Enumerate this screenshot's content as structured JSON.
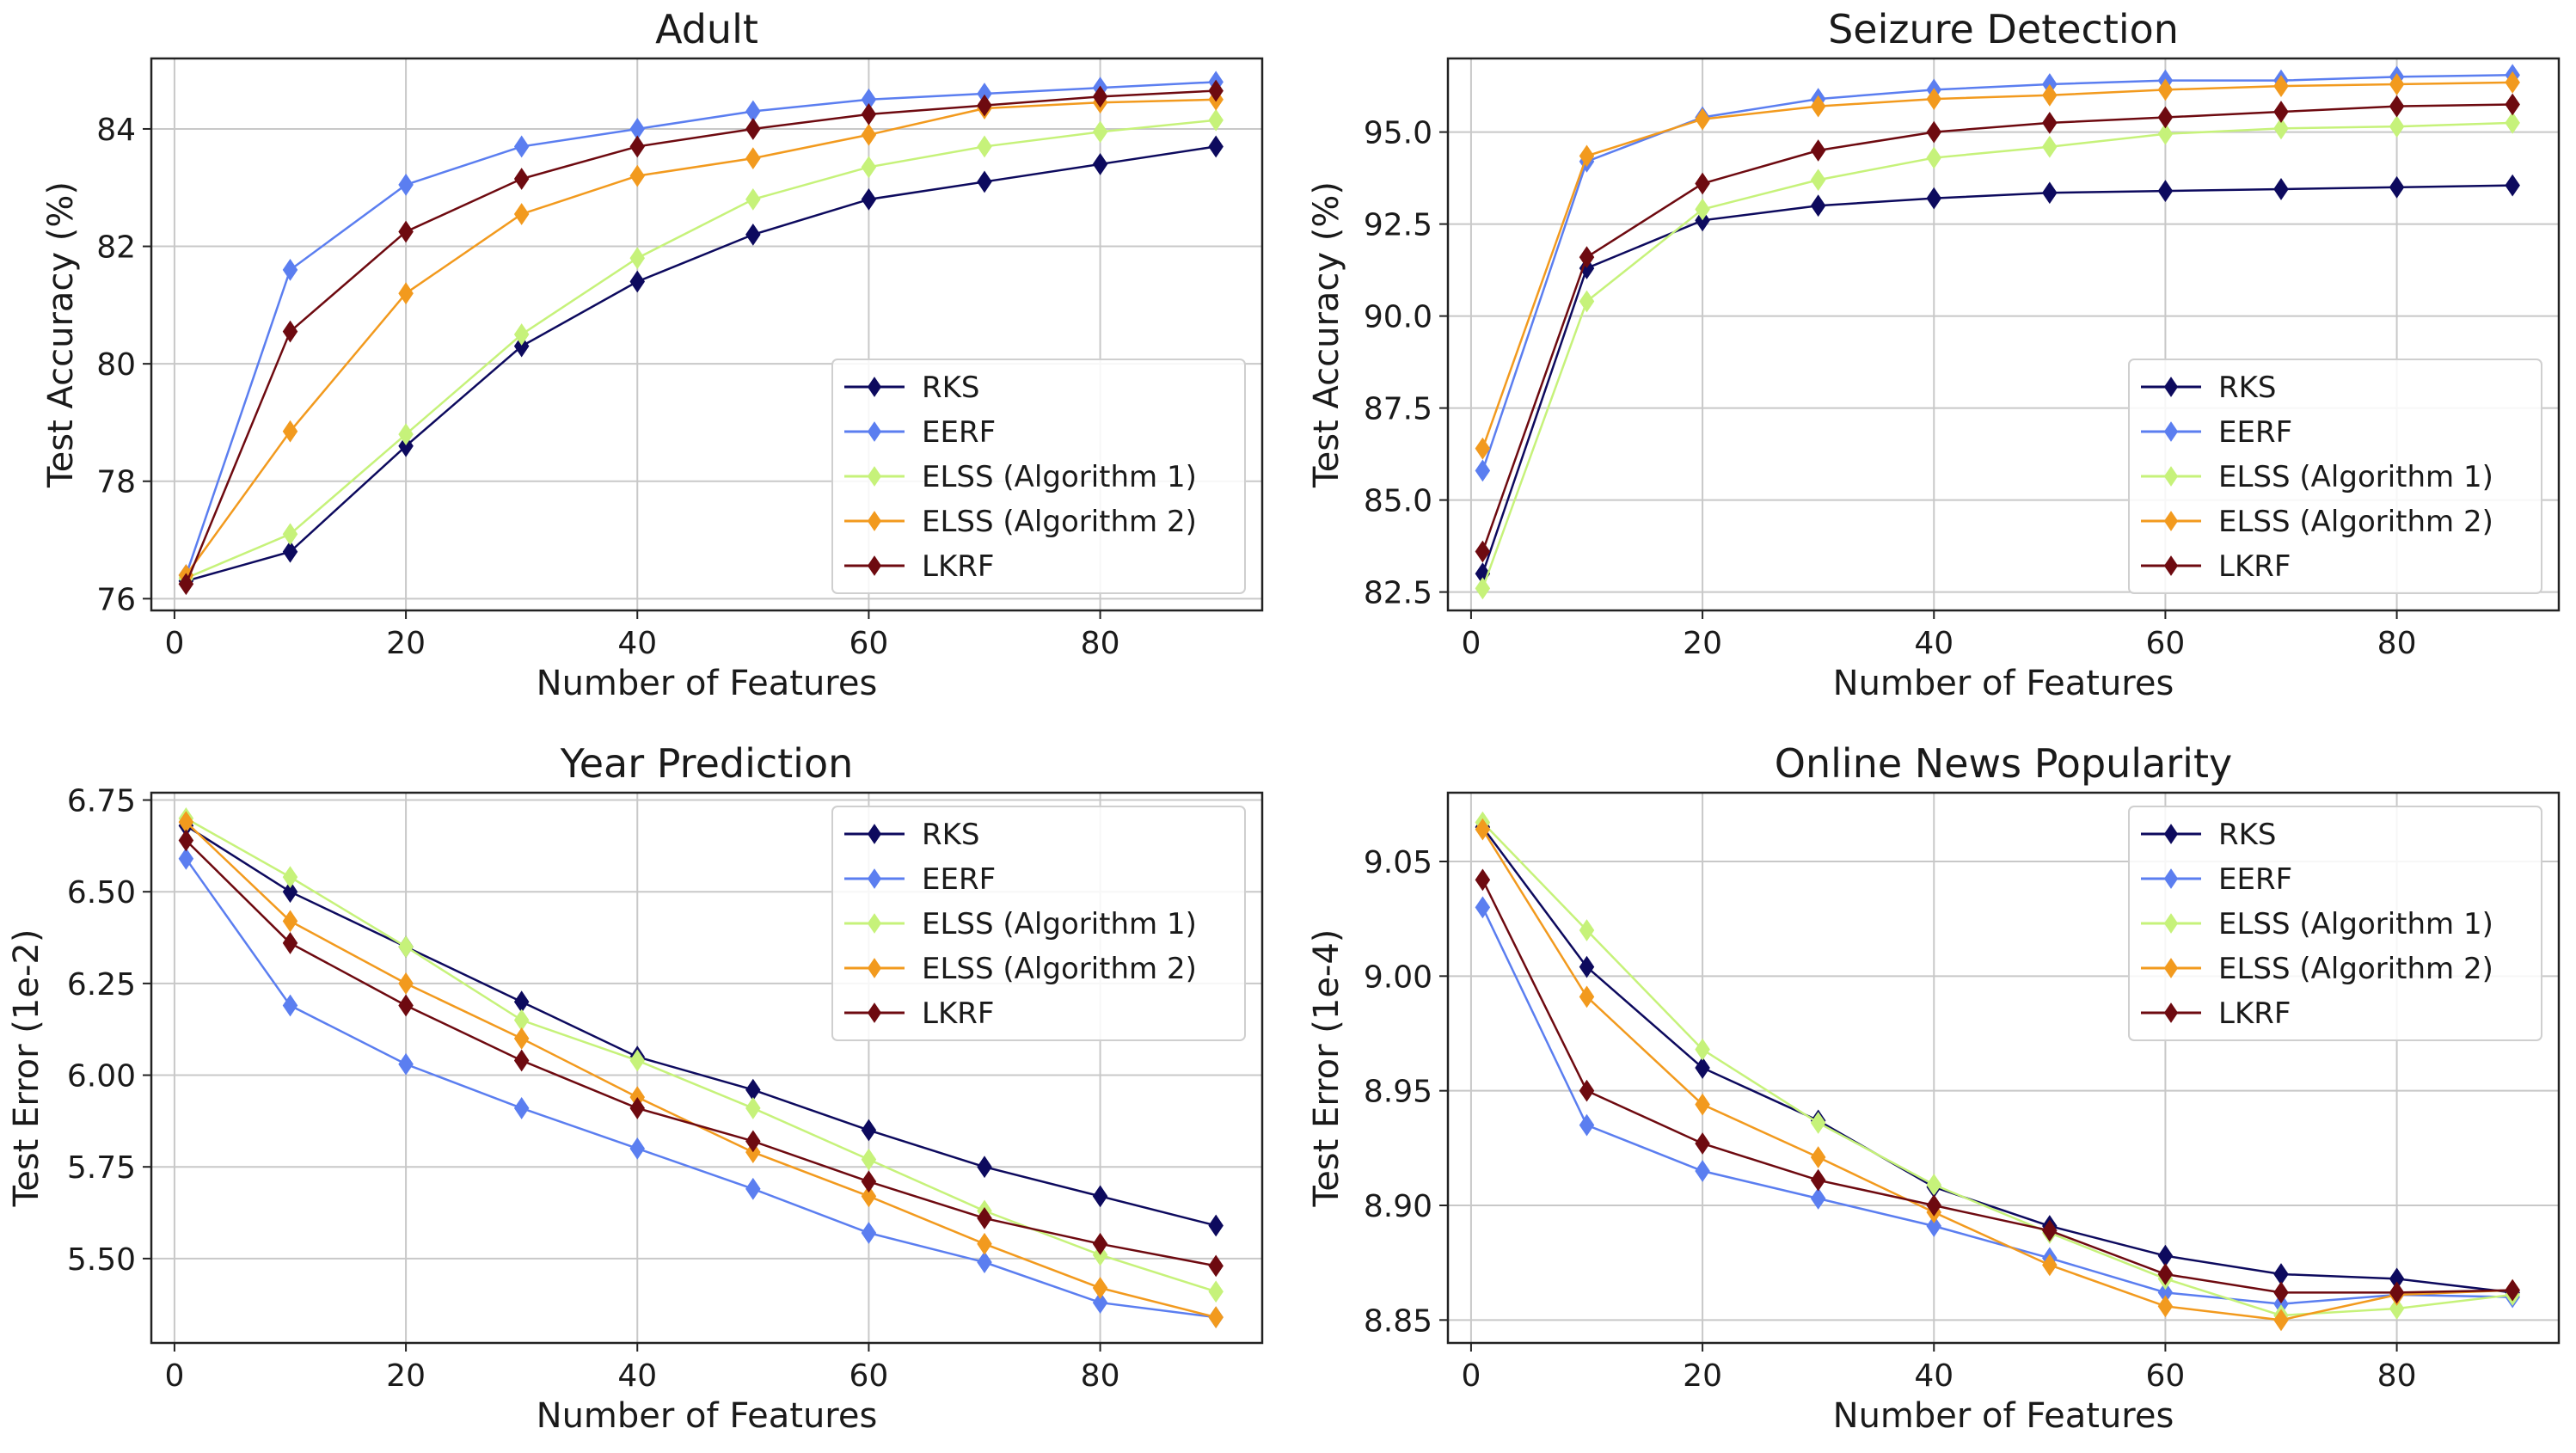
{
  "series_styles": [
    {
      "name": "RKS",
      "color": "#0d0a5e"
    },
    {
      "name": "EERF",
      "color": "#5b7ef0"
    },
    {
      "name": "ELSS (Algorithm 1)",
      "color": "#c6f27a"
    },
    {
      "name": "ELSS (Algorithm 2)",
      "color": "#f29a1e"
    },
    {
      "name": "LKRF",
      "color": "#6e0a10"
    }
  ],
  "chart_data": [
    {
      "type": "line",
      "title": "Adult",
      "xlabel": "Number of Features",
      "ylabel": "Test Accuracy (%)",
      "xlim": [
        -2,
        94
      ],
      "ylim": [
        75.8,
        85.2
      ],
      "xticks": [
        0,
        20,
        40,
        60,
        80
      ],
      "yticks": [
        76,
        78,
        80,
        82,
        84
      ],
      "ytick_labels": [
        "76",
        "78",
        "80",
        "82",
        "84"
      ],
      "grid": true,
      "legend_position": "lower right",
      "x": [
        1,
        10,
        20,
        30,
        40,
        50,
        60,
        70,
        80,
        90
      ],
      "series": [
        {
          "name": "RKS",
          "values": [
            76.3,
            76.8,
            78.6,
            80.3,
            81.4,
            82.2,
            82.8,
            83.1,
            83.4,
            83.7
          ]
        },
        {
          "name": "EERF",
          "values": [
            76.4,
            81.6,
            83.05,
            83.7,
            84.0,
            84.3,
            84.5,
            84.6,
            84.7,
            84.8
          ]
        },
        {
          "name": "ELSS (Algorithm 1)",
          "values": [
            76.35,
            77.1,
            78.8,
            80.5,
            81.8,
            82.8,
            83.35,
            83.7,
            83.95,
            84.15
          ]
        },
        {
          "name": "ELSS (Algorithm 2)",
          "values": [
            76.4,
            78.85,
            81.2,
            82.55,
            83.2,
            83.5,
            83.9,
            84.35,
            84.45,
            84.5
          ]
        },
        {
          "name": "LKRF",
          "values": [
            76.25,
            80.55,
            82.25,
            83.15,
            83.7,
            84.0,
            84.25,
            84.4,
            84.55,
            84.65
          ]
        }
      ]
    },
    {
      "type": "line",
      "title": "Seizure Detection",
      "xlabel": "Number of Features",
      "ylabel": "Test Accuracy (%)",
      "xlim": [
        -2,
        94
      ],
      "ylim": [
        82.0,
        97.0
      ],
      "xticks": [
        0,
        20,
        40,
        60,
        80
      ],
      "yticks": [
        82.5,
        85.0,
        87.5,
        90.0,
        92.5,
        95.0
      ],
      "ytick_labels": [
        "82.5",
        "85.0",
        "87.5",
        "90.0",
        "92.5",
        "95.0"
      ],
      "grid": true,
      "legend_position": "lower right",
      "x": [
        1,
        10,
        20,
        30,
        40,
        50,
        60,
        70,
        80,
        90
      ],
      "series": [
        {
          "name": "RKS",
          "values": [
            83.0,
            91.3,
            92.6,
            93.0,
            93.2,
            93.35,
            93.4,
            93.45,
            93.5,
            93.55
          ]
        },
        {
          "name": "EERF",
          "values": [
            85.8,
            94.2,
            95.4,
            95.9,
            96.15,
            96.3,
            96.4,
            96.4,
            96.5,
            96.55
          ]
        },
        {
          "name": "ELSS (Algorithm 1)",
          "values": [
            82.6,
            90.4,
            92.9,
            93.7,
            94.3,
            94.6,
            94.95,
            95.1,
            95.15,
            95.25
          ]
        },
        {
          "name": "ELSS (Algorithm 2)",
          "values": [
            86.4,
            94.35,
            95.35,
            95.7,
            95.9,
            96.0,
            96.15,
            96.25,
            96.3,
            96.35
          ]
        },
        {
          "name": "LKRF",
          "values": [
            83.6,
            91.6,
            93.6,
            94.5,
            95.0,
            95.25,
            95.4,
            95.55,
            95.7,
            95.75
          ]
        }
      ]
    },
    {
      "type": "line",
      "title": "Year Prediction",
      "xlabel": "Number of Features",
      "ylabel": "Test Error (1e-2)",
      "xlim": [
        -2,
        94
      ],
      "ylim": [
        5.27,
        6.77
      ],
      "xticks": [
        0,
        20,
        40,
        60,
        80
      ],
      "yticks": [
        5.5,
        5.75,
        6.0,
        6.25,
        6.5,
        6.75
      ],
      "ytick_labels": [
        "5.50",
        "5.75",
        "6.00",
        "6.25",
        "6.50",
        "6.75"
      ],
      "grid": true,
      "legend_position": "upper right",
      "x": [
        1,
        10,
        20,
        30,
        40,
        50,
        60,
        70,
        80,
        90
      ],
      "series": [
        {
          "name": "RKS",
          "values": [
            6.68,
            6.5,
            6.35,
            6.2,
            6.05,
            5.96,
            5.85,
            5.75,
            5.67,
            5.59
          ]
        },
        {
          "name": "EERF",
          "values": [
            6.59,
            6.19,
            6.03,
            5.91,
            5.8,
            5.69,
            5.57,
            5.49,
            5.38,
            5.34
          ]
        },
        {
          "name": "ELSS (Algorithm 1)",
          "values": [
            6.7,
            6.54,
            6.35,
            6.15,
            6.04,
            5.91,
            5.77,
            5.63,
            5.51,
            5.41
          ]
        },
        {
          "name": "ELSS (Algorithm 2)",
          "values": [
            6.69,
            6.42,
            6.25,
            6.1,
            5.94,
            5.79,
            5.67,
            5.54,
            5.42,
            5.34
          ]
        },
        {
          "name": "LKRF",
          "values": [
            6.64,
            6.36,
            6.19,
            6.04,
            5.91,
            5.82,
            5.71,
            5.61,
            5.54,
            5.48
          ]
        }
      ]
    },
    {
      "type": "line",
      "title": "Online News Popularity",
      "xlabel": "Number of Features",
      "ylabel": "Test Error (1e-4)",
      "xlim": [
        -2,
        94
      ],
      "ylim": [
        8.84,
        9.08
      ],
      "xticks": [
        0,
        20,
        40,
        60,
        80
      ],
      "yticks": [
        8.85,
        8.9,
        8.95,
        9.0,
        9.05
      ],
      "ytick_labels": [
        "8.85",
        "8.90",
        "8.95",
        "9.00",
        "9.05"
      ],
      "grid": true,
      "legend_position": "upper right",
      "x": [
        1,
        10,
        20,
        30,
        40,
        50,
        60,
        70,
        80,
        90
      ],
      "series": [
        {
          "name": "RKS",
          "values": [
            9.065,
            9.004,
            8.96,
            8.937,
            8.908,
            8.891,
            8.878,
            8.87,
            8.868,
            8.862
          ]
        },
        {
          "name": "EERF",
          "values": [
            9.03,
            8.935,
            8.915,
            8.903,
            8.891,
            8.877,
            8.862,
            8.857,
            8.861,
            8.86
          ]
        },
        {
          "name": "ELSS (Algorithm 1)",
          "values": [
            9.067,
            9.02,
            8.968,
            8.936,
            8.909,
            8.888,
            8.868,
            8.852,
            8.855,
            8.861
          ]
        },
        {
          "name": "ELSS (Algorithm 2)",
          "values": [
            9.064,
            8.991,
            8.944,
            8.921,
            8.897,
            8.874,
            8.856,
            8.85,
            8.861,
            8.863
          ]
        },
        {
          "name": "LKRF",
          "values": [
            9.042,
            8.95,
            8.927,
            8.911,
            8.9,
            8.889,
            8.87,
            8.862,
            8.862,
            8.863
          ]
        }
      ]
    }
  ]
}
